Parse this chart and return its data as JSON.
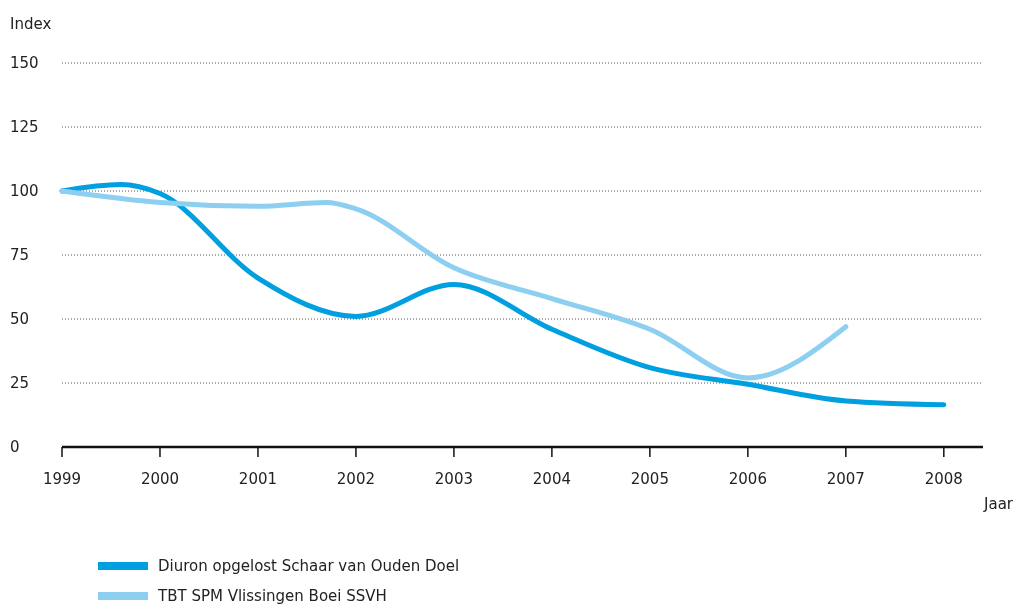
{
  "chart_data": {
    "type": "line",
    "ylabel": "Index",
    "xlabel": "Jaar",
    "xlim": [
      1999,
      2008.4
    ],
    "xticks": [
      1999,
      2000,
      2001,
      2002,
      2003,
      2004,
      2005,
      2006,
      2007,
      2008
    ],
    "ylim": [
      0,
      150
    ],
    "yticks": [
      0,
      25,
      50,
      75,
      100,
      125,
      150
    ],
    "grid": "y",
    "legend": "bottom",
    "line_style": "solid",
    "series": [
      {
        "name": "Diuron opgelost Schaar van Ouden Doel",
        "color": "#009fe0",
        "x": [
          1999,
          1999.6,
          2000,
          2001,
          2002,
          2003,
          2004,
          2005,
          2006,
          2007,
          2008
        ],
        "values": [
          100,
          102.5,
          99,
          66,
          51,
          63.5,
          46,
          31,
          24.5,
          18,
          16.5
        ]
      },
      {
        "name": "TBT SPM Vlissingen Boei SSVH",
        "color": "#8dcff0",
        "x": [
          1999,
          2000,
          2001,
          2001.7,
          2002,
          2003,
          2004,
          2005,
          2006,
          2007
        ],
        "values": [
          100,
          95.5,
          94,
          95.5,
          93,
          70,
          58,
          46,
          27,
          47
        ]
      }
    ]
  }
}
